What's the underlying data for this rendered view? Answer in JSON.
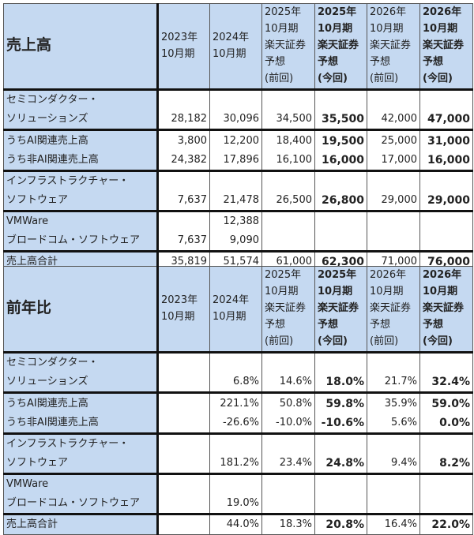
{
  "columns": [
    "2023年\n10月期",
    "2024年\n10月期",
    "2025年\n10月期\n楽天証券\n予想\n(前回)",
    "2025年\n10月期\n楽天証券\n予想\n(今回)",
    "2026年\n10月期\n楽天証券\n予想\n(前回)",
    "2026年\n10月期\n楽天証券\n予想\n(今回)"
  ],
  "bold_columns": [
    3,
    5
  ],
  "tables": [
    {
      "title": "売上高",
      "groups": [
        [
          {
            "label": "セミコンダクター・\nソリューションズ",
            "cells": [
              "28,182",
              "30,096",
              "34,500",
              "35,500",
              "42,000",
              "47,000"
            ]
          }
        ],
        [
          {
            "label": "うちAI関連売上高",
            "cells": [
              "3,800",
              "12,200",
              "18,400",
              "19,500",
              "25,000",
              "31,000"
            ]
          },
          {
            "label": "うち非AI関連売上高",
            "cells": [
              "24,382",
              "17,896",
              "16,100",
              "16,000",
              "17,000",
              "16,000"
            ]
          }
        ],
        [
          {
            "label": "インフラストラクチャー・\nソフトウェア",
            "cells": [
              "7,637",
              "21,478",
              "26,500",
              "26,800",
              "29,000",
              "29,000"
            ]
          }
        ],
        [
          {
            "label": "VMWare",
            "cells": [
              "",
              "12,388",
              "",
              "",
              "",
              ""
            ]
          },
          {
            "label": "ブロードコム・ソフトウェア",
            "cells": [
              "7,637",
              "9,090",
              "",
              "",
              "",
              ""
            ]
          }
        ],
        [
          {
            "label": "売上高合計",
            "cells": [
              "35,819",
              "51,574",
              "61,000",
              "62,300",
              "71,000",
              "76,000"
            ]
          }
        ]
      ]
    },
    {
      "title": "前年比",
      "groups": [
        [
          {
            "label": "セミコンダクター・\nソリューションズ",
            "cells": [
              "",
              "6.8%",
              "14.6%",
              "18.0%",
              "21.7%",
              "32.4%"
            ]
          }
        ],
        [
          {
            "label": "うちAI関連売上高",
            "cells": [
              "",
              "221.1%",
              "50.8%",
              "59.8%",
              "35.9%",
              "59.0%"
            ]
          },
          {
            "label": "うち非AI関連売上高",
            "cells": [
              "",
              "-26.6%",
              "-10.0%",
              "-10.6%",
              "5.6%",
              "0.0%"
            ]
          }
        ],
        [
          {
            "label": "インフラストラクチャー・\nソフトウェア",
            "cells": [
              "",
              "181.2%",
              "23.4%",
              "24.8%",
              "9.4%",
              "8.2%"
            ]
          }
        ],
        [
          {
            "label": "VMWare",
            "cells": [
              "",
              "",
              "",
              "",
              "",
              ""
            ]
          },
          {
            "label": "ブロードコム・ソフトウェア",
            "cells": [
              "",
              "19.0%",
              "",
              "",
              "",
              ""
            ]
          }
        ],
        [
          {
            "label": "売上高合計",
            "cells": [
              "",
              "44.0%",
              "18.3%",
              "20.8%",
              "16.4%",
              "22.0%"
            ]
          }
        ]
      ]
    }
  ]
}
